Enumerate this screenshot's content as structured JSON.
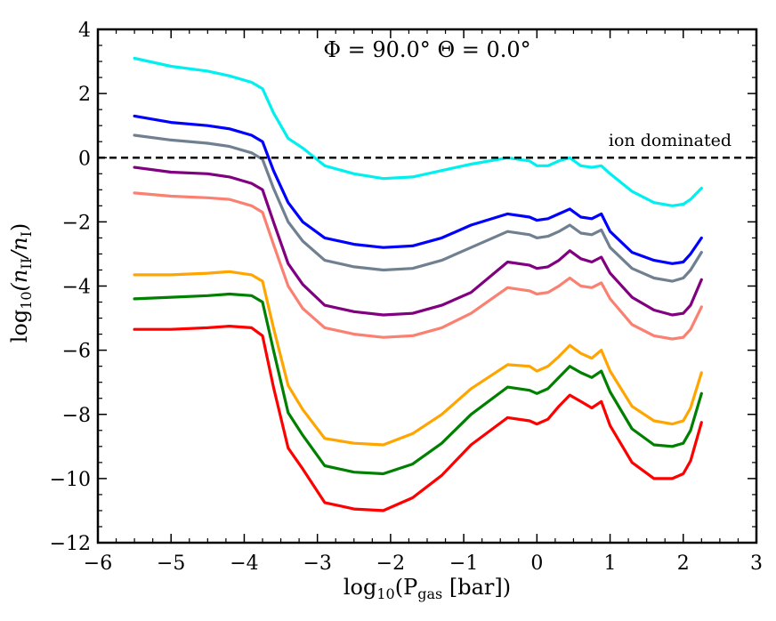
{
  "chart_data": {
    "type": "line",
    "title": "Φ = 90.0° Θ = 0.0°",
    "xlabel": "log₁₀(P_gas [bar])",
    "ylabel": "log₁₀(n_II/n_I)",
    "xlabel_parts": {
      "pre": "log",
      "sub": "10",
      "mid": "(P",
      "sub2": "gas",
      "post": " [bar])"
    },
    "ylabel_parts": {
      "pre": "log",
      "sub": "10",
      "mid": "(n",
      "sub2": "II",
      "mid2": "/n",
      "sub3": "I",
      "post": ")"
    },
    "xlim": [
      -6,
      3
    ],
    "ylim": [
      -12,
      4
    ],
    "xticks": [
      -6,
      -5,
      -4,
      -3,
      -2,
      -1,
      0,
      1,
      2,
      3
    ],
    "yticks": [
      -12,
      -10,
      -8,
      -6,
      -4,
      -2,
      0,
      2,
      4
    ],
    "xtick_labels": [
      "−6",
      "−5",
      "−4",
      "−3",
      "−2",
      "−1",
      "0",
      "1",
      "2",
      "3"
    ],
    "ytick_labels": [
      "−12",
      "−10",
      "−8",
      "−6",
      "−4",
      "−2",
      "0",
      "2",
      "4"
    ],
    "reference_line": {
      "y": 0,
      "label": "ion dominated",
      "style": "dashed",
      "color": "#000000"
    },
    "x": [
      -5.5,
      -5.0,
      -4.5,
      -4.2,
      -3.9,
      -3.75,
      -3.6,
      -3.4,
      -3.2,
      -2.9,
      -2.5,
      -2.1,
      -1.7,
      -1.3,
      -0.9,
      -0.4,
      -0.1,
      0.0,
      0.15,
      0.3,
      0.45,
      0.6,
      0.75,
      0.88,
      1.0,
      1.3,
      1.6,
      1.85,
      2.0,
      2.1,
      2.25
    ],
    "series": [
      {
        "name": "cyan",
        "color": "#00f0f0",
        "values": [
          3.1,
          2.85,
          2.7,
          2.55,
          2.35,
          2.15,
          1.4,
          0.6,
          0.3,
          -0.25,
          -0.5,
          -0.65,
          -0.6,
          -0.4,
          -0.2,
          0.0,
          -0.1,
          -0.25,
          -0.25,
          -0.1,
          0.0,
          -0.25,
          -0.3,
          -0.25,
          -0.5,
          -1.05,
          -1.4,
          -1.5,
          -1.45,
          -1.3,
          -0.95
        ]
      },
      {
        "name": "blue",
        "color": "#0000ff",
        "values": [
          1.3,
          1.1,
          1.0,
          0.9,
          0.7,
          0.5,
          -0.4,
          -1.4,
          -2.0,
          -2.5,
          -2.7,
          -2.8,
          -2.75,
          -2.5,
          -2.1,
          -1.75,
          -1.85,
          -1.95,
          -1.9,
          -1.75,
          -1.6,
          -1.85,
          -1.9,
          -1.75,
          -2.3,
          -2.95,
          -3.2,
          -3.3,
          -3.25,
          -3.0,
          -2.5
        ]
      },
      {
        "name": "slategray",
        "color": "#708090",
        "values": [
          0.7,
          0.55,
          0.45,
          0.35,
          0.15,
          -0.05,
          -0.95,
          -2.0,
          -2.6,
          -3.2,
          -3.4,
          -3.5,
          -3.45,
          -3.2,
          -2.8,
          -2.3,
          -2.4,
          -2.5,
          -2.45,
          -2.3,
          -2.1,
          -2.35,
          -2.4,
          -2.25,
          -2.8,
          -3.45,
          -3.75,
          -3.85,
          -3.75,
          -3.5,
          -2.95
        ]
      },
      {
        "name": "purple",
        "color": "#800080",
        "values": [
          -0.3,
          -0.45,
          -0.5,
          -0.6,
          -0.8,
          -1.0,
          -2.0,
          -3.3,
          -3.95,
          -4.6,
          -4.8,
          -4.9,
          -4.85,
          -4.6,
          -4.2,
          -3.25,
          -3.35,
          -3.45,
          -3.4,
          -3.2,
          -2.9,
          -3.15,
          -3.25,
          -3.1,
          -3.6,
          -4.35,
          -4.75,
          -4.9,
          -4.85,
          -4.6,
          -3.8
        ]
      },
      {
        "name": "salmon",
        "color": "#fa8072",
        "values": [
          -1.1,
          -1.2,
          -1.25,
          -1.3,
          -1.5,
          -1.7,
          -2.7,
          -4.0,
          -4.7,
          -5.3,
          -5.5,
          -5.6,
          -5.55,
          -5.3,
          -4.85,
          -4.05,
          -4.15,
          -4.25,
          -4.2,
          -4.0,
          -3.75,
          -4.0,
          -4.05,
          -3.9,
          -4.4,
          -5.2,
          -5.55,
          -5.65,
          -5.6,
          -5.35,
          -4.65
        ]
      },
      {
        "name": "orange",
        "color": "#ffa500",
        "values": [
          -3.65,
          -3.65,
          -3.6,
          -3.55,
          -3.65,
          -3.85,
          -5.3,
          -7.1,
          -7.85,
          -8.75,
          -8.9,
          -8.95,
          -8.6,
          -8.0,
          -7.2,
          -6.45,
          -6.5,
          -6.65,
          -6.5,
          -6.2,
          -5.85,
          -6.1,
          -6.25,
          -6.0,
          -6.65,
          -7.75,
          -8.2,
          -8.3,
          -8.2,
          -7.8,
          -6.7
        ]
      },
      {
        "name": "green",
        "color": "#008000",
        "values": [
          -4.4,
          -4.35,
          -4.3,
          -4.25,
          -4.3,
          -4.5,
          -6.0,
          -7.95,
          -8.65,
          -9.6,
          -9.8,
          -9.85,
          -9.55,
          -8.9,
          -8.0,
          -7.15,
          -7.25,
          -7.35,
          -7.2,
          -6.85,
          -6.5,
          -6.7,
          -6.85,
          -6.65,
          -7.3,
          -8.45,
          -8.95,
          -9.0,
          -8.9,
          -8.5,
          -7.35
        ]
      },
      {
        "name": "red",
        "color": "#ff0000",
        "values": [
          -5.35,
          -5.35,
          -5.3,
          -5.25,
          -5.3,
          -5.55,
          -7.15,
          -9.05,
          -9.7,
          -10.75,
          -10.95,
          -11.0,
          -10.6,
          -9.9,
          -8.95,
          -8.1,
          -8.2,
          -8.3,
          -8.15,
          -7.75,
          -7.4,
          -7.6,
          -7.8,
          -7.6,
          -8.35,
          -9.5,
          -10.0,
          -10.0,
          -9.85,
          -9.45,
          -8.25
        ]
      }
    ]
  }
}
